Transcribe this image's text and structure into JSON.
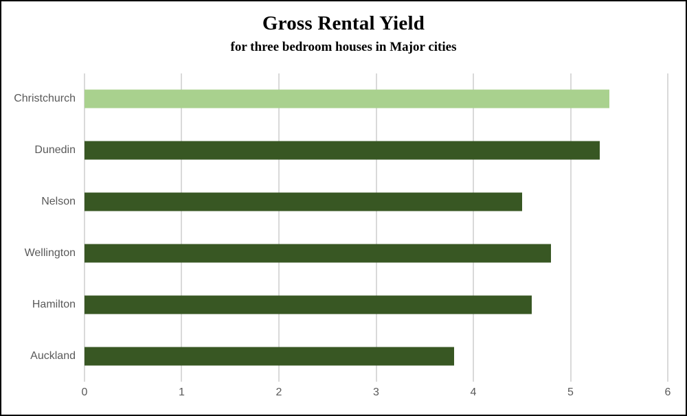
{
  "chart_data": {
    "type": "bar",
    "orientation": "horizontal",
    "title": "Gross Rental Yield",
    "subtitle": "for three bedroom houses in Major cities",
    "categories": [
      "Christchurch",
      "Dunedin",
      "Nelson",
      "Wellington",
      "Hamilton",
      "Auckland"
    ],
    "values": [
      5.4,
      5.3,
      4.5,
      4.8,
      4.6,
      3.8
    ],
    "bar_colors": [
      "#A9D18E",
      "#385723",
      "#385723",
      "#385723",
      "#385723",
      "#385723"
    ],
    "highlighted_category": "Christchurch",
    "xlabel": "",
    "ylabel": "",
    "xlim": [
      0,
      6
    ],
    "x_ticks": [
      "0",
      "1",
      "2",
      "3",
      "4",
      "5",
      "6"
    ],
    "gridlines": "vertical-major-only",
    "legend": "none"
  },
  "styles": {
    "bar_color": "#385723",
    "highlight_color": "#A9D18E",
    "gridline_color": "#D9D9D9",
    "axis_text_color": "#595959",
    "title_color": "#000000",
    "border_color": "#000000",
    "background": "#FFFFFF"
  }
}
